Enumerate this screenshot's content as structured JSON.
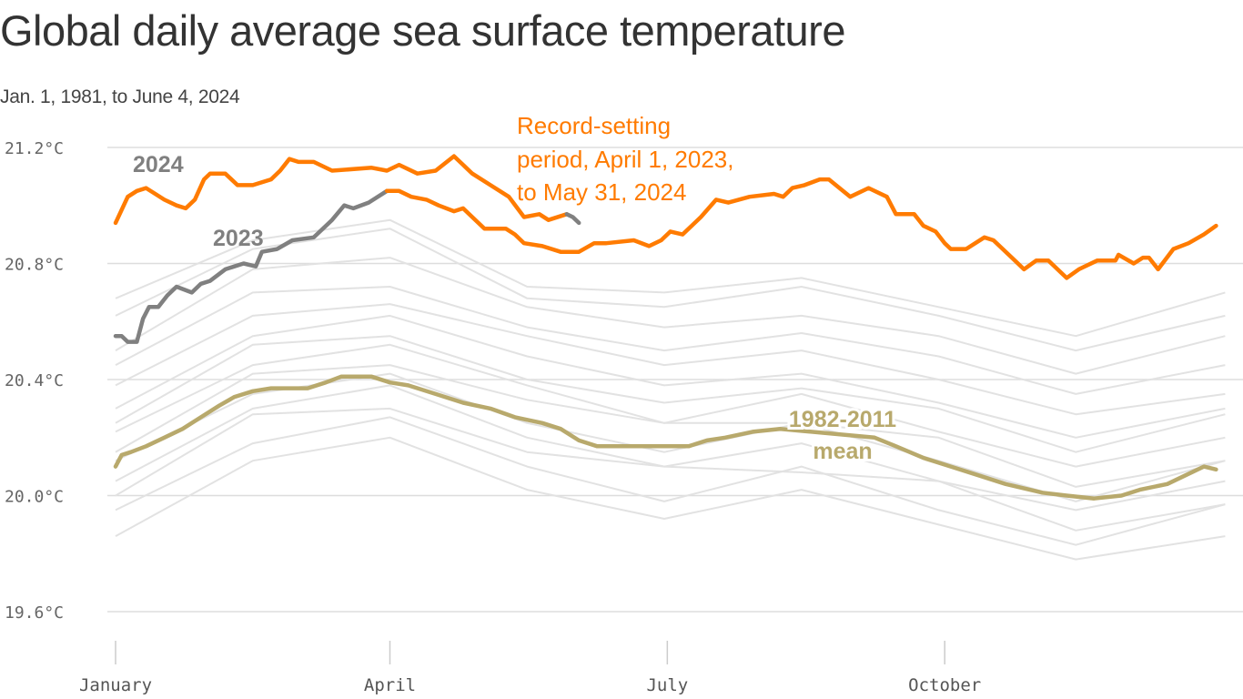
{
  "title": "Global daily average sea surface temperature",
  "subtitle": "Jan. 1, 1981, to June 4, 2024",
  "chart_data": {
    "type": "line",
    "title": "Global daily average sea surface temperature",
    "subtitle": "Jan. 1, 1981, to June 4, 2024",
    "x_unit": "day of year",
    "xlim": [
      0,
      364
    ],
    "ylim": [
      19.6,
      21.2
    ],
    "y_ticks": [
      {
        "value": 21.2,
        "label": "21.2°C"
      },
      {
        "value": 20.8,
        "label": "20.8°C"
      },
      {
        "value": 20.4,
        "label": "20.4°C"
      },
      {
        "value": 20.0,
        "label": "20.0°C"
      },
      {
        "value": 19.6,
        "label": "19.6°C"
      }
    ],
    "x_ticks": [
      {
        "day": 0,
        "label": "January"
      },
      {
        "day": 90,
        "label": "April"
      },
      {
        "day": 181,
        "label": "July"
      },
      {
        "day": 272,
        "label": "October"
      }
    ],
    "grid": true,
    "colors": {
      "record": "#ff7b00",
      "highlight_year": "#808080",
      "mean": "#b8a96c",
      "other_years": "#e2e2e2",
      "grid": "#dddddd"
    },
    "annotations": {
      "label_2024": "2024",
      "label_2023": "2023",
      "record_lines": [
        "Record-setting",
        "period, April 1, 2023,",
        "to May 31, 2024"
      ],
      "mean_lines": [
        "1982-2011",
        "mean"
      ]
    },
    "other_years_days": [
      0,
      45,
      90,
      135,
      180,
      225,
      270,
      315,
      364
    ],
    "other_years": [
      [
        19.86,
        20.12,
        20.2,
        20.02,
        19.92,
        20.02,
        19.9,
        19.78,
        19.86
      ],
      [
        19.95,
        20.18,
        20.27,
        20.1,
        19.98,
        20.1,
        19.95,
        19.83,
        19.97
      ],
      [
        20.0,
        20.28,
        20.3,
        20.15,
        20.1,
        20.08,
        20.05,
        19.88,
        19.97
      ],
      [
        20.05,
        20.3,
        20.38,
        20.2,
        20.1,
        20.18,
        20.05,
        19.95,
        20.05
      ],
      [
        20.12,
        20.35,
        20.42,
        20.25,
        20.15,
        20.25,
        20.12,
        19.98,
        20.12
      ],
      [
        20.15,
        20.42,
        20.45,
        20.33,
        20.25,
        20.25,
        20.2,
        20.03,
        20.12
      ],
      [
        20.22,
        20.45,
        20.52,
        20.38,
        20.25,
        20.35,
        20.22,
        20.1,
        20.2
      ],
      [
        20.25,
        20.52,
        20.55,
        20.4,
        20.32,
        20.37,
        20.3,
        20.15,
        20.28
      ],
      [
        20.3,
        20.55,
        20.62,
        20.48,
        20.38,
        20.42,
        20.32,
        20.2,
        20.3
      ],
      [
        20.38,
        20.62,
        20.66,
        20.55,
        20.45,
        20.5,
        20.4,
        20.28,
        20.35
      ],
      [
        20.45,
        20.7,
        20.72,
        20.58,
        20.5,
        20.56,
        20.48,
        20.35,
        20.45
      ],
      [
        20.5,
        20.78,
        20.82,
        20.65,
        20.58,
        20.62,
        20.55,
        20.42,
        20.55
      ],
      [
        20.62,
        20.85,
        20.92,
        20.68,
        20.65,
        20.72,
        20.62,
        20.5,
        20.62
      ],
      [
        20.68,
        20.88,
        20.95,
        20.72,
        20.7,
        20.75,
        20.65,
        20.55,
        20.7
      ]
    ],
    "series": [
      {
        "name": "1982-2011 mean",
        "color_key": "mean",
        "points": [
          [
            0,
            20.1
          ],
          [
            2,
            20.14
          ],
          [
            5,
            20.15
          ],
          [
            10,
            20.17
          ],
          [
            16,
            20.2
          ],
          [
            22,
            20.23
          ],
          [
            28,
            20.27
          ],
          [
            34,
            20.31
          ],
          [
            39,
            20.34
          ],
          [
            45,
            20.36
          ],
          [
            51,
            20.37
          ],
          [
            63,
            20.37
          ],
          [
            69,
            20.39
          ],
          [
            74,
            20.41
          ],
          [
            84,
            20.41
          ],
          [
            90,
            20.39
          ],
          [
            96,
            20.38
          ],
          [
            105,
            20.35
          ],
          [
            114,
            20.32
          ],
          [
            123,
            20.3
          ],
          [
            131,
            20.27
          ],
          [
            140,
            20.25
          ],
          [
            146,
            20.23
          ],
          [
            152,
            20.19
          ],
          [
            158,
            20.17
          ],
          [
            188,
            20.17
          ],
          [
            194,
            20.19
          ],
          [
            200,
            20.2
          ],
          [
            209,
            20.22
          ],
          [
            218,
            20.23
          ],
          [
            249,
            20.2
          ],
          [
            256,
            20.17
          ],
          [
            265,
            20.13
          ],
          [
            274,
            20.1
          ],
          [
            283,
            20.07
          ],
          [
            292,
            20.04
          ],
          [
            304,
            20.01
          ],
          [
            312,
            20.0
          ],
          [
            321,
            19.99
          ],
          [
            330,
            20.0
          ],
          [
            336,
            20.02
          ],
          [
            345,
            20.04
          ],
          [
            351,
            20.07
          ],
          [
            357,
            20.1
          ],
          [
            361,
            20.09
          ]
        ]
      },
      {
        "name": "2023",
        "color_key": "highlight_year",
        "points": [
          [
            0,
            20.55
          ],
          [
            2,
            20.55
          ],
          [
            4,
            20.53
          ],
          [
            7,
            20.53
          ],
          [
            9,
            20.61
          ],
          [
            11,
            20.65
          ],
          [
            14,
            20.65
          ],
          [
            17,
            20.69
          ],
          [
            20,
            20.72
          ],
          [
            25,
            20.7
          ],
          [
            28,
            20.73
          ],
          [
            31,
            20.74
          ],
          [
            36,
            20.78
          ],
          [
            39,
            20.79
          ],
          [
            42,
            20.8
          ],
          [
            46,
            20.79
          ],
          [
            48,
            20.84
          ],
          [
            53,
            20.85
          ],
          [
            58,
            20.88
          ],
          [
            65,
            20.89
          ],
          [
            71,
            20.95
          ],
          [
            75,
            21.0
          ],
          [
            78,
            20.99
          ],
          [
            83,
            21.01
          ],
          [
            89,
            21.05
          ]
        ]
      },
      {
        "name": "2023 record period",
        "color_key": "record",
        "points": [
          [
            89,
            21.05
          ],
          [
            93,
            21.05
          ],
          [
            97,
            21.03
          ],
          [
            102,
            21.02
          ],
          [
            106,
            21.0
          ],
          [
            111,
            20.98
          ],
          [
            114,
            20.99
          ],
          [
            117,
            20.96
          ],
          [
            121,
            20.92
          ],
          [
            128,
            20.92
          ],
          [
            131,
            20.9
          ],
          [
            134,
            20.87
          ],
          [
            140,
            20.86
          ],
          [
            146,
            20.84
          ],
          [
            152,
            20.84
          ],
          [
            157,
            20.87
          ],
          [
            161,
            20.87
          ],
          [
            170,
            20.88
          ],
          [
            175,
            20.86
          ],
          [
            179,
            20.88
          ],
          [
            182,
            20.91
          ],
          [
            186,
            20.9
          ],
          [
            189,
            20.93
          ],
          [
            192,
            20.96
          ],
          [
            197,
            21.02
          ],
          [
            201,
            21.01
          ],
          [
            208,
            21.03
          ],
          [
            216,
            21.04
          ],
          [
            219,
            21.03
          ],
          [
            222,
            21.06
          ],
          [
            226,
            21.07
          ],
          [
            231,
            21.09
          ],
          [
            234,
            21.09
          ],
          [
            241,
            21.03
          ],
          [
            247,
            21.06
          ],
          [
            253,
            21.03
          ],
          [
            256,
            20.97
          ],
          [
            262,
            20.97
          ],
          [
            265,
            20.93
          ],
          [
            269,
            20.91
          ],
          [
            272,
            20.87
          ],
          [
            274,
            20.85
          ],
          [
            279,
            20.85
          ],
          [
            285,
            20.89
          ],
          [
            288,
            20.88
          ],
          [
            295,
            20.81
          ],
          [
            298,
            20.78
          ],
          [
            302,
            20.81
          ],
          [
            306,
            20.81
          ],
          [
            309,
            20.78
          ],
          [
            312,
            20.75
          ],
          [
            316,
            20.78
          ],
          [
            322,
            20.81
          ],
          [
            328,
            20.81
          ],
          [
            329,
            20.83
          ],
          [
            334,
            20.8
          ],
          [
            337,
            20.82
          ],
          [
            339,
            20.82
          ],
          [
            342,
            20.78
          ],
          [
            347,
            20.85
          ],
          [
            352,
            20.87
          ],
          [
            357,
            20.9
          ],
          [
            361,
            20.93
          ]
        ]
      },
      {
        "name": "2024 record period",
        "color_key": "record",
        "points": [
          [
            0,
            20.94
          ],
          [
            4,
            21.03
          ],
          [
            7,
            21.05
          ],
          [
            10,
            21.06
          ],
          [
            13,
            21.04
          ],
          [
            16,
            21.02
          ],
          [
            20,
            21.0
          ],
          [
            23,
            20.99
          ],
          [
            26,
            21.02
          ],
          [
            29,
            21.09
          ],
          [
            31,
            21.11
          ],
          [
            36,
            21.11
          ],
          [
            40,
            21.07
          ],
          [
            45,
            21.07
          ],
          [
            51,
            21.09
          ],
          [
            54,
            21.12
          ],
          [
            57,
            21.16
          ],
          [
            60,
            21.15
          ],
          [
            65,
            21.15
          ],
          [
            71,
            21.12
          ],
          [
            84,
            21.13
          ],
          [
            89,
            21.12
          ],
          [
            93,
            21.14
          ],
          [
            99,
            21.11
          ],
          [
            105,
            21.12
          ],
          [
            111,
            21.17
          ],
          [
            117,
            21.11
          ],
          [
            123,
            21.07
          ],
          [
            129,
            21.03
          ],
          [
            134,
            20.96
          ],
          [
            139,
            20.97
          ],
          [
            142,
            20.95
          ],
          [
            148,
            20.97
          ]
        ]
      },
      {
        "name": "2024",
        "color_key": "highlight_year",
        "points": [
          [
            148,
            20.97
          ],
          [
            150,
            20.96
          ],
          [
            152,
            20.94
          ]
        ]
      }
    ]
  }
}
